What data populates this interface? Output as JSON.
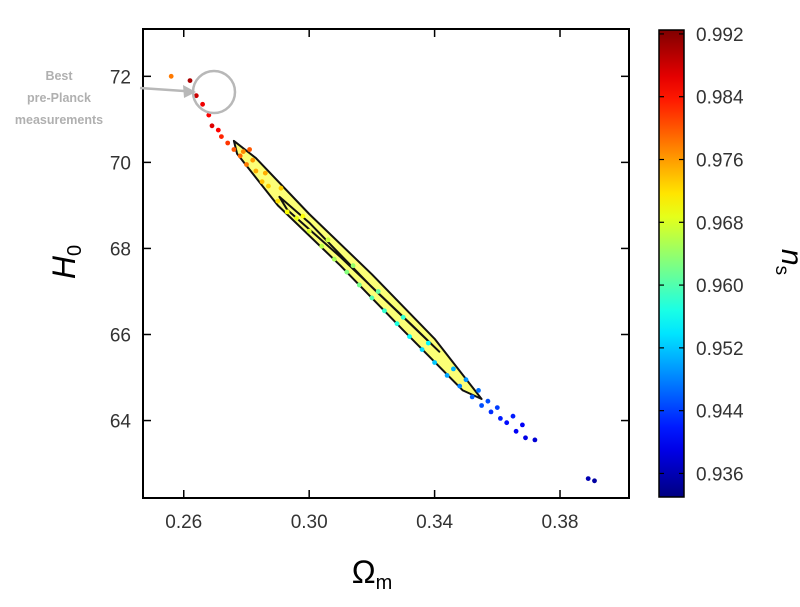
{
  "chart_data": {
    "type": "scatter",
    "xlabel": "Ω",
    "xlabel_sub": "m",
    "ylabel": "H",
    "ylabel_sub": "0",
    "xlim": [
      0.247,
      0.402
    ],
    "ylim": [
      62.2,
      73.1
    ],
    "xticks": [
      0.26,
      0.3,
      0.34,
      0.38
    ],
    "xtick_labels": [
      "0.26",
      "0.30",
      "0.34",
      "0.38"
    ],
    "yticks": [
      64,
      66,
      68,
      70,
      72
    ],
    "ytick_labels": [
      "64",
      "66",
      "68",
      "70",
      "72"
    ],
    "grid": false,
    "colorbar": {
      "label": "n",
      "label_sub": "s",
      "range": [
        0.933,
        0.9925
      ],
      "ticks": [
        0.936,
        0.944,
        0.952,
        0.96,
        0.968,
        0.976,
        0.984,
        0.992
      ],
      "tick_labels": [
        "0.936",
        "0.944",
        "0.952",
        "0.960",
        "0.968",
        "0.976",
        "0.984",
        "0.992"
      ],
      "colormap": "jet",
      "colors": [
        "#00007f",
        "#0000ff",
        "#0080ff",
        "#00ffff",
        "#80ff80",
        "#ffff00",
        "#ff8000",
        "#ff0000",
        "#7f0000"
      ]
    },
    "contours": [
      {
        "level": "68%",
        "points": [
          [
            0.276,
            70.5
          ],
          [
            0.283,
            70.1
          ],
          [
            0.3,
            68.8
          ],
          [
            0.32,
            67.4
          ],
          [
            0.34,
            65.9
          ],
          [
            0.355,
            64.5
          ],
          [
            0.349,
            64.7
          ],
          [
            0.33,
            66.1
          ],
          [
            0.31,
            67.6
          ],
          [
            0.29,
            69.0
          ],
          [
            0.277,
            70.2
          ]
        ]
      },
      {
        "level": "95%",
        "points": [
          [
            0.2905,
            69.2
          ],
          [
            0.3,
            68.6
          ],
          [
            0.32,
            67.1
          ],
          [
            0.3415,
            65.6
          ],
          [
            0.333,
            66.2
          ],
          [
            0.31,
            67.8
          ],
          [
            0.293,
            68.9
          ]
        ]
      }
    ],
    "series": [
      {
        "points": [
          [
            0.256,
            72.0,
            0.978
          ],
          [
            0.262,
            71.9,
            0.99
          ],
          [
            0.264,
            71.55,
            0.988
          ],
          [
            0.266,
            71.35,
            0.986
          ],
          [
            0.268,
            71.1,
            0.985
          ],
          [
            0.269,
            70.85,
            0.987
          ],
          [
            0.271,
            70.75,
            0.985
          ],
          [
            0.272,
            70.6,
            0.983
          ],
          [
            0.274,
            70.45,
            0.982
          ],
          [
            0.276,
            70.3,
            0.98
          ],
          [
            0.278,
            70.15,
            0.979
          ],
          [
            0.279,
            70.25,
            0.977
          ],
          [
            0.28,
            69.95,
            0.978
          ],
          [
            0.282,
            70.05,
            0.976
          ],
          [
            0.283,
            69.8,
            0.975
          ],
          [
            0.285,
            69.55,
            0.974
          ],
          [
            0.287,
            69.45,
            0.973
          ],
          [
            0.29,
            69.1,
            0.972
          ],
          [
            0.293,
            68.85,
            0.97
          ],
          [
            0.296,
            68.7,
            0.969
          ],
          [
            0.3,
            68.4,
            0.968
          ],
          [
            0.304,
            68.05,
            0.966
          ],
          [
            0.308,
            67.75,
            0.965
          ],
          [
            0.312,
            67.45,
            0.963
          ],
          [
            0.316,
            67.15,
            0.962
          ],
          [
            0.32,
            66.85,
            0.96
          ],
          [
            0.324,
            66.55,
            0.958
          ],
          [
            0.328,
            66.25,
            0.957
          ],
          [
            0.332,
            65.95,
            0.955
          ],
          [
            0.336,
            65.65,
            0.953
          ],
          [
            0.34,
            65.35,
            0.952
          ],
          [
            0.344,
            65.05,
            0.95
          ],
          [
            0.348,
            64.8,
            0.948
          ],
          [
            0.352,
            64.55,
            0.946
          ],
          [
            0.355,
            64.35,
            0.945
          ],
          [
            0.358,
            64.2,
            0.943
          ],
          [
            0.361,
            64.05,
            0.942
          ],
          [
            0.363,
            63.95,
            0.941
          ],
          [
            0.366,
            63.75,
            0.94
          ],
          [
            0.369,
            63.6,
            0.939
          ],
          [
            0.372,
            63.55,
            0.938
          ],
          [
            0.389,
            62.65,
            0.936
          ],
          [
            0.391,
            62.6,
            0.935
          ],
          [
            0.281,
            70.3,
            0.98
          ],
          [
            0.286,
            69.75,
            0.975
          ],
          [
            0.291,
            69.4,
            0.973
          ],
          [
            0.298,
            68.75,
            0.97
          ],
          [
            0.306,
            68.2,
            0.967
          ],
          [
            0.314,
            67.6,
            0.964
          ],
          [
            0.322,
            67.0,
            0.961
          ],
          [
            0.33,
            66.4,
            0.958
          ],
          [
            0.338,
            65.8,
            0.955
          ],
          [
            0.346,
            65.2,
            0.951
          ],
          [
            0.35,
            64.95,
            0.949
          ],
          [
            0.354,
            64.7,
            0.947
          ],
          [
            0.357,
            64.45,
            0.945
          ],
          [
            0.36,
            64.3,
            0.944
          ],
          [
            0.365,
            64.1,
            0.942
          ],
          [
            0.368,
            63.9,
            0.94
          ]
        ]
      }
    ]
  },
  "annotation": {
    "lines": [
      "Best",
      "pre-Planck",
      "measurements"
    ]
  }
}
